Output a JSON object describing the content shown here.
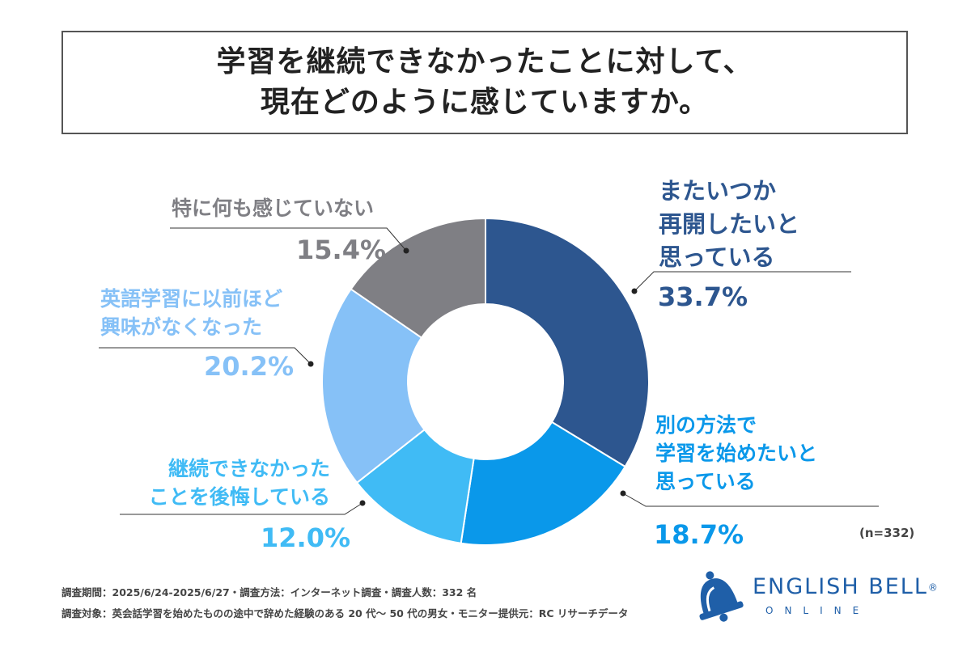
{
  "title": {
    "line1": "学習を継続できなかったことに対して、",
    "line2": "現在どのように感じていますか。"
  },
  "chart_data": {
    "type": "pie",
    "variant": "donut",
    "start": "12 o'clock, clockwise",
    "note": "(n=332)",
    "slices": [
      {
        "label_lines": [
          "またいつか",
          "再開したいと",
          "思っている"
        ],
        "value": 33.7,
        "value_label": "33.7%",
        "color": "#2d568f",
        "text_color": "#2d568f"
      },
      {
        "label_lines": [
          "別の方法で",
          "学習を始めたいと",
          "思っている"
        ],
        "value": 18.7,
        "value_label": "18.7%",
        "color": "#0a98ea",
        "text_color": "#0a98ea"
      },
      {
        "label_lines": [
          "継続できなかった",
          "ことを後悔している"
        ],
        "value": 12.0,
        "value_label": "12.0%",
        "color": "#40bbf5",
        "text_color": "#40bbf5"
      },
      {
        "label_lines": [
          "英語学習に以前ほど",
          "興味がなくなった"
        ],
        "value": 20.2,
        "value_label": "20.2%",
        "color": "#86c1f7",
        "text_color": "#86c1f7"
      },
      {
        "label_lines": [
          "特に何も感じていない"
        ],
        "value": 15.4,
        "value_label": "15.4%",
        "color": "#7f7f84",
        "text_color": "#7f7f84"
      }
    ]
  },
  "footer": {
    "line1": "調査期間：2025/6/24-2025/6/27・調査方法：インターネット調査・調査人数：332 名",
    "line2": "調査対象：英会話学習を始めたものの途中で辞めた経験のある 20 代〜 50 代の男女・モニター提供元：RC リサーチデータ"
  },
  "brand": {
    "name": "ENGLISH BELL",
    "mark": "®",
    "sub": "ONLINE",
    "color": "#1f5fa8",
    "icon": "bell-icon"
  }
}
